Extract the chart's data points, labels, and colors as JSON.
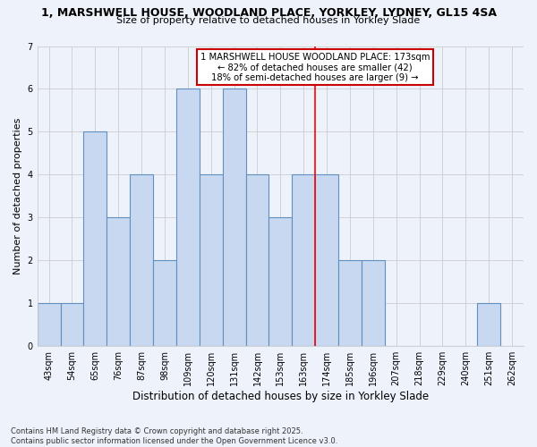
{
  "title1": "1, MARSHWELL HOUSE, WOODLAND PLACE, YORKLEY, LYDNEY, GL15 4SA",
  "title2": "Size of property relative to detached houses in Yorkley Slade",
  "xlabel": "Distribution of detached houses by size in Yorkley Slade",
  "ylabel": "Number of detached properties",
  "categories": [
    "43sqm",
    "54sqm",
    "65sqm",
    "76sqm",
    "87sqm",
    "98sqm",
    "109sqm",
    "120sqm",
    "131sqm",
    "142sqm",
    "153sqm",
    "163sqm",
    "174sqm",
    "185sqm",
    "196sqm",
    "207sqm",
    "218sqm",
    "229sqm",
    "240sqm",
    "251sqm",
    "262sqm"
  ],
  "values": [
    1,
    1,
    5,
    3,
    4,
    2,
    6,
    4,
    6,
    4,
    3,
    4,
    4,
    2,
    2,
    0,
    0,
    0,
    0,
    1,
    0
  ],
  "bar_color": "#c8d8f0",
  "bar_edge_color": "#6090c0",
  "red_line_index": 12,
  "annotation_text": "1 MARSHWELL HOUSE WOODLAND PLACE: 173sqm\n← 82% of detached houses are smaller (42)\n18% of semi-detached houses are larger (9) →",
  "annotation_box_color": "#ffffff",
  "annotation_box_edge": "#cc0000",
  "ylim": [
    0,
    7
  ],
  "yticks": [
    0,
    1,
    2,
    3,
    4,
    5,
    6,
    7
  ],
  "footer": "Contains HM Land Registry data © Crown copyright and database right 2025.\nContains public sector information licensed under the Open Government Licence v3.0.",
  "bg_color": "#eef2fb"
}
